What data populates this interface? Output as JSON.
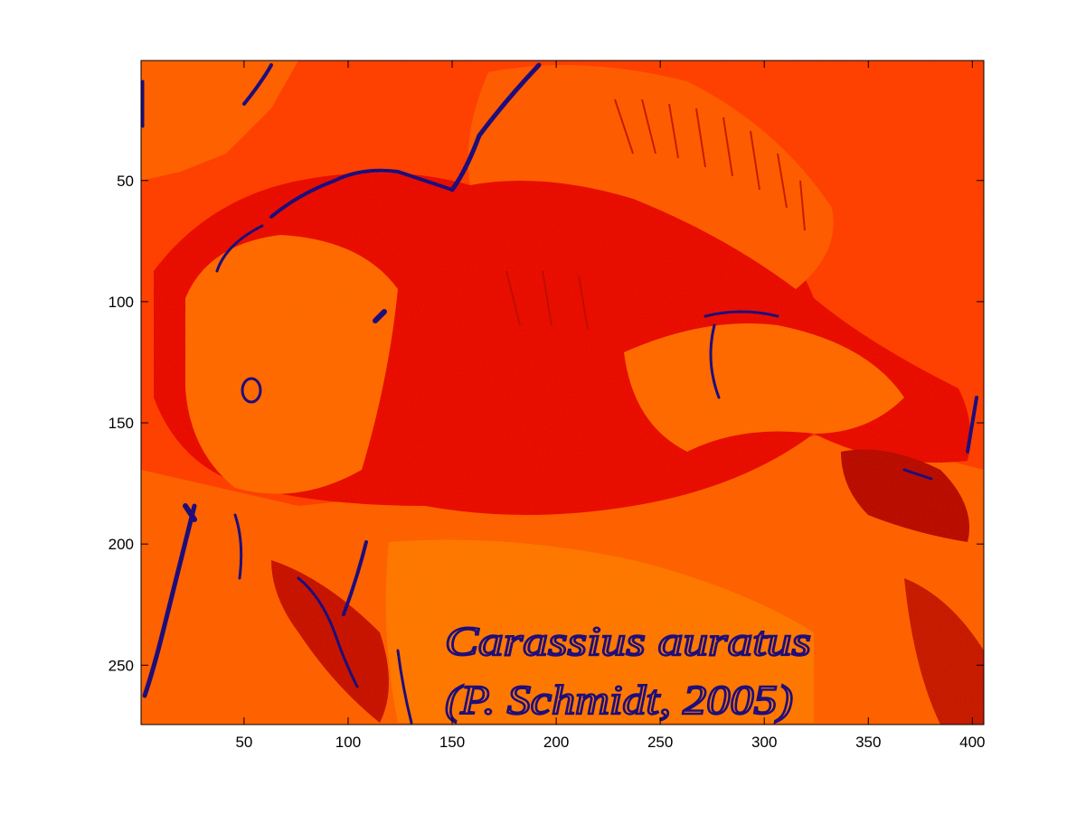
{
  "chart_data": {
    "type": "heatmap",
    "title": "",
    "xlabel": "",
    "ylabel": "",
    "xlim": [
      1,
      405
    ],
    "ylim": [
      1,
      274
    ],
    "y_reversed": true,
    "x_ticks": [
      50,
      100,
      150,
      200,
      250,
      300,
      350,
      400
    ],
    "y_ticks": [
      50,
      100,
      150,
      200,
      250
    ],
    "x_tick_labels": [
      "50",
      "100",
      "150",
      "200",
      "250",
      "300",
      "350",
      "400"
    ],
    "y_tick_labels": [
      "50",
      "100",
      "150",
      "200",
      "250"
    ],
    "grid": false,
    "legend": "none",
    "colormap": "jet-like (upper range: red-orange dominant, dark blue for lowest)",
    "palette": {
      "background_red_orange": "#ff3a00",
      "deep_red": "#e60000",
      "orange": "#ff6000",
      "light_orange": "#ff7a00",
      "dark_red": "#b00000",
      "dark_blue": "#00008c"
    },
    "image_text": "Carassius auratus (P. Schmidt, 2005)"
  }
}
